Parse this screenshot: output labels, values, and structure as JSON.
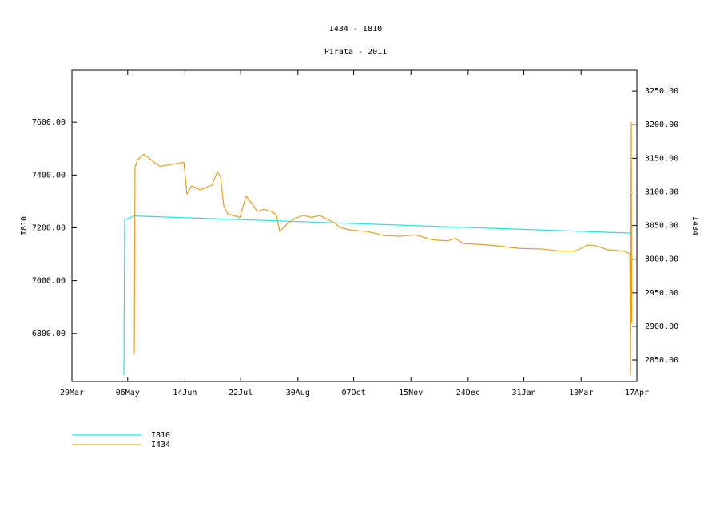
{
  "chart_data": {
    "type": "line",
    "title": "I434 - I810",
    "subtitle": "Pirata - 2011",
    "y_label": "I810",
    "y2_label": "I434",
    "xlim": [
      0,
      385
    ],
    "xticks": [
      {
        "value": 0,
        "label": "29Mar"
      },
      {
        "value": 38,
        "label": "06May"
      },
      {
        "value": 77,
        "label": "14Jun"
      },
      {
        "value": 115,
        "label": "22Jul"
      },
      {
        "value": 154,
        "label": "30Aug"
      },
      {
        "value": 192,
        "label": "07Oct"
      },
      {
        "value": 231,
        "label": "15Nov"
      },
      {
        "value": 270,
        "label": "24Dec"
      },
      {
        "value": 308,
        "label": "31Jan"
      },
      {
        "value": 347,
        "label": "10Mar"
      },
      {
        "value": 385,
        "label": "17Apr"
      }
    ],
    "ylim": [
      6618,
      7797
    ],
    "yticks": [
      {
        "value": 6800,
        "label": "6800.00"
      },
      {
        "value": 7000,
        "label": "7000.00"
      },
      {
        "value": 7200,
        "label": "7200.00"
      },
      {
        "value": 7400,
        "label": "7400.00"
      },
      {
        "value": 7600,
        "label": "7600.00"
      }
    ],
    "y2lim": [
      2818,
      3281
    ],
    "y2ticks": [
      {
        "value": 2850,
        "label": "2850.00"
      },
      {
        "value": 2900,
        "label": "2900.00"
      },
      {
        "value": 2950,
        "label": "2950.00"
      },
      {
        "value": 3000,
        "label": "3000.00"
      },
      {
        "value": 3050,
        "label": "3050.00"
      },
      {
        "value": 3100,
        "label": "3100.00"
      },
      {
        "value": 3150,
        "label": "3150.00"
      },
      {
        "value": 3200,
        "label": "3200.00"
      },
      {
        "value": 3250,
        "label": "3250.00"
      }
    ],
    "series": [
      {
        "name": "I810",
        "color": "#22e6e6",
        "axis": "y",
        "x": [
          35.4,
          35.9,
          42.5,
          381.3
        ],
        "values": [
          6642,
          7230,
          7245,
          7180
        ]
      },
      {
        "name": "I434",
        "color": "#e6a01e",
        "axis": "y2",
        "x": [
          42.5,
          43.0,
          44.7,
          49.0,
          59.9,
          76.3,
          78.4,
          81.7,
          87.1,
          95.3,
          99.1,
          101.3,
          103.5,
          106.2,
          114.4,
          118.7,
          122.5,
          126.4,
          130.7,
          136.2,
          139.4,
          141.6,
          144.3,
          148.1,
          152.5,
          157.9,
          163.4,
          168.8,
          174.3,
          179.7,
          182.5,
          190.6,
          201.5,
          212.4,
          223.3,
          234.2,
          245.1,
          256.0,
          261.4,
          266.9,
          277.8,
          288.7,
          305.0,
          321.3,
          332.2,
          343.1,
          351.3,
          356.8,
          364.9,
          375.8,
          380.2,
          380.7,
          381.2,
          381.5
        ],
        "values": [
          2859,
          3136,
          3148,
          3156,
          3138,
          3144,
          3097,
          3109,
          3103,
          3110,
          3130,
          3122,
          3079,
          3067,
          3062,
          3094,
          3083,
          3071,
          3074,
          3071,
          3065,
          3041,
          3047,
          3055,
          3061,
          3065,
          3062,
          3065,
          3059,
          3053,
          3047,
          3043,
          3041,
          3035,
          3034,
          3036,
          3029,
          3027,
          3031,
          3023,
          3022,
          3020,
          3016,
          3015,
          3012,
          3012,
          3021,
          3020,
          3014,
          3012,
          3008,
          2827,
          3204,
          2904
        ]
      }
    ]
  }
}
